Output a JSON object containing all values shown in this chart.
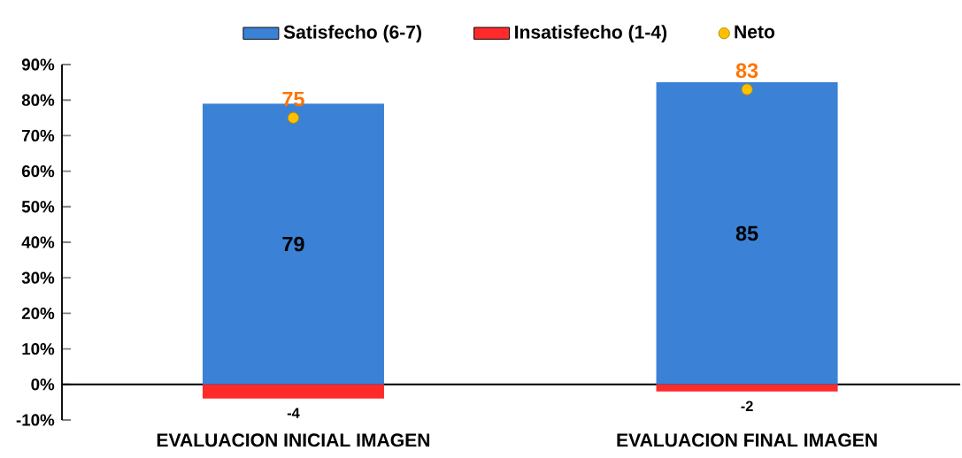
{
  "chart_data": {
    "type": "bar",
    "categories": [
      "EVALUACION INICIAL IMAGEN",
      "EVALUACION FINAL IMAGEN"
    ],
    "series": [
      {
        "name": "Satisfecho (6-7)",
        "color": "#3b82d6",
        "values": [
          79,
          85
        ]
      },
      {
        "name": "Insatisfecho (1-4)",
        "color": "#ff2a2a",
        "values": [
          -4,
          -2
        ]
      },
      {
        "name": "Neto",
        "type": "scatter",
        "color": "#ffc000",
        "values": [
          75,
          83
        ]
      }
    ],
    "ylim": [
      -10,
      90
    ],
    "yticks": [
      {
        "value": -10,
        "label": "-10%"
      },
      {
        "value": 0,
        "label": "0%"
      },
      {
        "value": 10,
        "label": "10%"
      },
      {
        "value": 20,
        "label": "20%"
      },
      {
        "value": 30,
        "label": "30%"
      },
      {
        "value": 40,
        "label": "40%"
      },
      {
        "value": 50,
        "label": "50%"
      },
      {
        "value": 60,
        "label": "60%"
      },
      {
        "value": 70,
        "label": "70%"
      },
      {
        "value": 80,
        "label": "80%"
      },
      {
        "value": 90,
        "label": "90%"
      }
    ],
    "stacked": true,
    "data_labels": true,
    "legend": "top",
    "marker": "circle"
  }
}
